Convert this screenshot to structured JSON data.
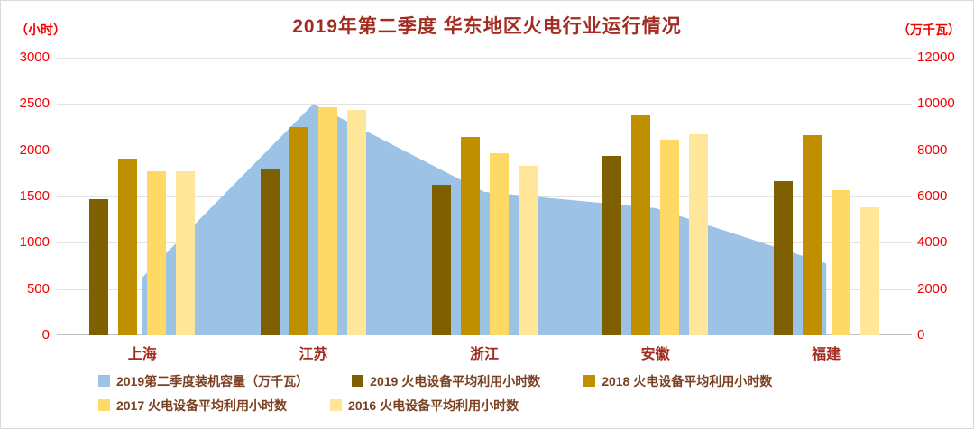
{
  "title": "2019年第二季度 华东地区火电行业运行情况",
  "left_axis": {
    "unit": "（小时）",
    "ticks": [
      "3000",
      "2500",
      "2000",
      "1500",
      "1000",
      "500",
      "0"
    ],
    "max": 3000
  },
  "right_axis": {
    "unit": "（万千瓦）",
    "ticks": [
      "12000",
      "10000",
      "8000",
      "6000",
      "4000",
      "2000",
      "0"
    ],
    "max": 12000
  },
  "chart_data": {
    "type": [
      "area",
      "bar"
    ],
    "title": "2019年第二季度 华东地区火电行业运行情况",
    "categories": [
      "上海",
      "江苏",
      "浙江",
      "安徽",
      "福建"
    ],
    "ylim_left": [
      0,
      3000
    ],
    "ylim_right": [
      0,
      12000
    ],
    "grid": true,
    "legend_position": "bottom",
    "area_series": {
      "name": "2019第二季度装机容量（万千瓦）",
      "axis": "right",
      "color": "#9cc3e6",
      "values": [
        2500,
        10000,
        6200,
        5500,
        3100
      ]
    },
    "bar_series": [
      {
        "name": "2019 火电设备平均利用小时数",
        "axis": "left",
        "color": "#7f6000",
        "values": [
          1470,
          1805,
          1625,
          1935,
          1665
        ]
      },
      {
        "name": "2018 火电设备平均利用小时数",
        "axis": "left",
        "color": "#bf8f00",
        "values": [
          1910,
          2255,
          2145,
          2380,
          2165
        ]
      },
      {
        "name": "2017 火电设备平均利用小时数",
        "axis": "left",
        "color": "#ffd966",
        "values": [
          1775,
          2465,
          1965,
          2115,
          1565
        ]
      },
      {
        "name": "2016 火电设备平均利用小时数",
        "axis": "left",
        "color": "#ffe699",
        "values": [
          1775,
          2440,
          1830,
          2175,
          1385
        ]
      }
    ],
    "legend_rows": [
      [
        0,
        1,
        2
      ],
      [
        3,
        4
      ]
    ]
  }
}
